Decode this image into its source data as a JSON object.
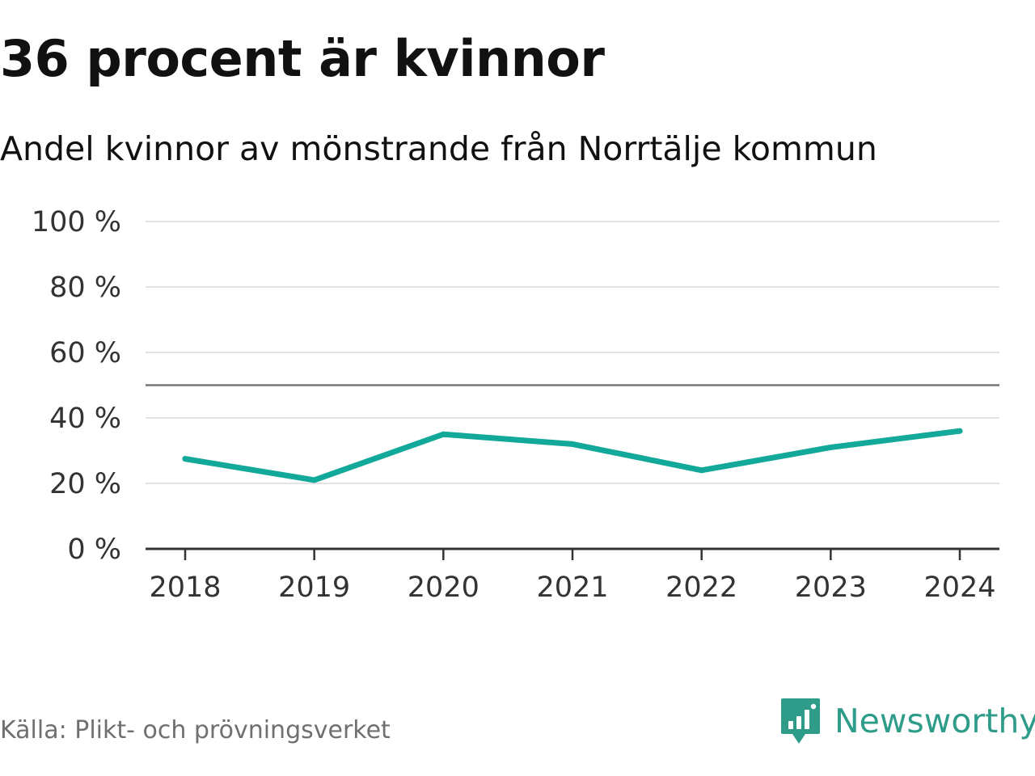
{
  "title": "36 procent är kvinnor",
  "subtitle": "Andel kvinnor av mönstrande från Norrtälje kommun",
  "source": "Källa: Plikt- och prövningsverket",
  "brand": {
    "name": "Newsworthy",
    "color": "#2f9c8a",
    "icon": "newsworthy-logo-icon"
  },
  "chart_data": {
    "type": "line",
    "title": "36 procent är kvinnor",
    "subtitle": "Andel kvinnor av mönstrande från Norrtälje kommun",
    "xlabel": "",
    "ylabel": "",
    "categories": [
      "2018",
      "2019",
      "2020",
      "2021",
      "2022",
      "2023",
      "2024"
    ],
    "series": [
      {
        "name": "Andel kvinnor",
        "values": [
          27.5,
          21,
          35,
          32,
          24,
          31,
          36
        ],
        "color": "#12a89a"
      }
    ],
    "ylim": [
      0,
      100
    ],
    "yticks": [
      0,
      20,
      40,
      60,
      80,
      100
    ],
    "ytick_labels": [
      "0 %",
      "20 %",
      "40 %",
      "60 %",
      "80 %",
      "100 %"
    ],
    "reference_line": {
      "value": 50,
      "color": "#777777"
    },
    "grid": true,
    "grid_color": "#e3e3e3",
    "axis_color": "#333333"
  }
}
